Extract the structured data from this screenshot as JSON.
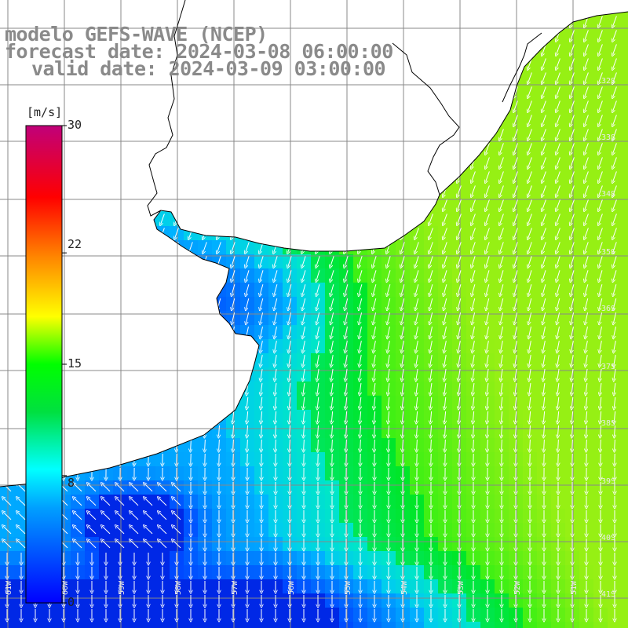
{
  "title": {
    "line1": "modelo GEFS-WAVE (NCEP)",
    "line2": "forecast date: 2024-03-08 06:00:00",
    "line3": "valid date: 2024-03-09 03:00:00"
  },
  "colorbar": {
    "unit": "[m/s]",
    "ticks": [
      "30",
      "22",
      "15",
      "8",
      "0"
    ],
    "tick_values": [
      30,
      22,
      15,
      8,
      0
    ],
    "min": 0,
    "max": 30,
    "colors": [
      "#0000ff",
      "#00a0ff",
      "#00ffff",
      "#00e040",
      "#00ff00",
      "#ffff00",
      "#ff8000",
      "#ff0000",
      "#c0007a"
    ]
  },
  "map": {
    "lat_labels": [
      "32S",
      "33S",
      "34S",
      "35S",
      "36S",
      "37S",
      "38S",
      "39S",
      "40S",
      "41S"
    ],
    "lon_labels": [
      "61W",
      "60W",
      "59W",
      "58W",
      "57W",
      "56W",
      "55W",
      "54W",
      "53W",
      "52W",
      "51W"
    ],
    "land_color": "#ffffff",
    "grid_color": "#888888",
    "coast_color": "#000000",
    "arrow_color": "#ffffff"
  }
}
